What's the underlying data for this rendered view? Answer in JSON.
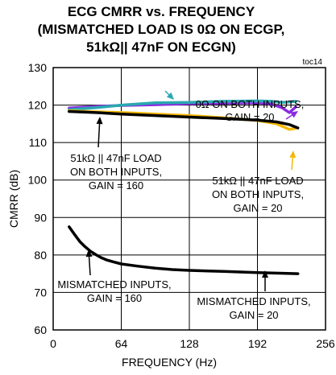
{
  "chart_data": {
    "type": "line",
    "title_lines": [
      "ECG CMRR vs. FREQUENCY",
      "(MISMATCHED LOAD IS 0Ω ON ECGP,",
      "51kΩ|| 47nF ON ECGN)"
    ],
    "tag": "toc14",
    "xlabel": "FREQUENCY (Hz)",
    "ylabel": "CMRR (dB)",
    "xlim": [
      0,
      256
    ],
    "ylim": [
      60,
      130
    ],
    "xticks": [
      "0",
      "64",
      "128",
      "192",
      "256"
    ],
    "yticks": [
      "60",
      "70",
      "80",
      "90",
      "100",
      "110",
      "120",
      "130"
    ],
    "colors": {
      "cyan": "#2aa8b0",
      "purple": "#8a2be2",
      "yellow": "#f5b800",
      "black": "#000000"
    },
    "series": [
      {
        "color_key": "purple",
        "x": [
          15,
          40,
          64,
          96,
          128,
          160,
          192,
          205,
          215,
          222,
          228
        ],
        "y": [
          119.2,
          119.6,
          119.9,
          120.1,
          120.4,
          120.5,
          120.6,
          120.3,
          119.3,
          118.0,
          119.5
        ]
      },
      {
        "color_key": "cyan",
        "x": [
          15,
          40,
          64,
          96,
          128,
          160,
          192,
          205,
          215,
          222,
          228
        ],
        "y": [
          118.8,
          119.3,
          120.0,
          120.6,
          120.7,
          121.0,
          121.1,
          121.0,
          120.7,
          120.8,
          121.0
        ]
      },
      {
        "color_key": "yellow",
        "x": [
          15,
          40,
          64,
          96,
          128,
          160,
          192,
          210,
          222,
          228
        ],
        "y": [
          118.5,
          118.2,
          118.0,
          117.6,
          117.2,
          116.6,
          115.9,
          115.0,
          113.5,
          113.8
        ]
      },
      {
        "color_key": "black",
        "x": [
          15,
          40,
          64,
          96,
          128,
          160,
          192,
          210,
          222,
          230
        ],
        "y": [
          118.3,
          118.0,
          117.6,
          117.2,
          116.8,
          116.4,
          116.0,
          115.5,
          114.8,
          113.9
        ]
      },
      {
        "color_key": "black",
        "x": [
          15,
          20,
          25,
          30,
          35,
          40,
          45,
          50,
          56,
          64,
          80,
          96,
          112,
          128,
          160,
          192,
          220,
          230
        ],
        "y": [
          87.5,
          85.5,
          83.6,
          82.2,
          81.0,
          80.1,
          79.3,
          78.7,
          78.2,
          77.6,
          77.0,
          76.5,
          76.1,
          75.9,
          75.6,
          75.3,
          75.1,
          75.0
        ]
      }
    ],
    "annotations": [
      {
        "lines": [
          "0Ω ON BOTH INPUTS,",
          "GAIN = 20"
        ]
      },
      {
        "lines": [
          "51kΩ || 47nF LOAD",
          "ON BOTH INPUTS,",
          "GAIN = 160"
        ]
      },
      {
        "lines": [
          "51kΩ || 47nF LOAD",
          "ON BOTH INPUTS,",
          "GAIN = 20"
        ]
      },
      {
        "lines": [
          "MISMATCHED INPUTS,",
          "GAIN = 160"
        ]
      },
      {
        "lines": [
          "MISMATCHED INPUTS,",
          "GAIN = 20"
        ]
      }
    ]
  }
}
